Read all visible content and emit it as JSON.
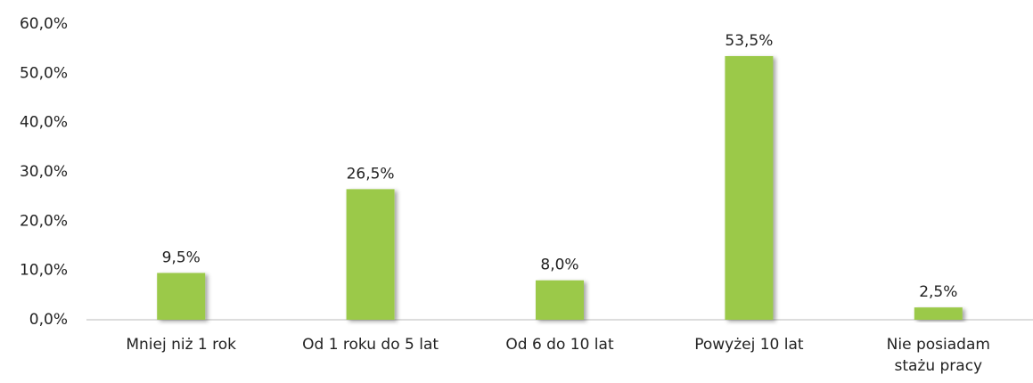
{
  "chart_data": {
    "type": "bar",
    "categories": [
      "Mniej niż 1 rok",
      "Od 1 roku do 5 lat",
      "Od 6 do 10 lat",
      "Powyżej 10 lat",
      "Nie posiadam stażu pracy"
    ],
    "values": [
      9.5,
      26.5,
      8.0,
      53.5,
      2.5
    ],
    "value_labels": [
      "9,5%",
      "26,5%",
      "8,0%",
      "53,5%",
      "2,5%"
    ],
    "color": "#9bc94a",
    "ylim": [
      0,
      60
    ],
    "yticks": [
      {
        "value": 0,
        "label": "0,0%"
      },
      {
        "value": 10,
        "label": "10,0%"
      },
      {
        "value": 20,
        "label": "20,0%"
      },
      {
        "value": 30,
        "label": "30,0%"
      },
      {
        "value": 40,
        "label": "40,0%"
      },
      {
        "value": 50,
        "label": "50,0%"
      },
      {
        "value": 60,
        "label": "60,0%"
      }
    ],
    "grid": false
  }
}
